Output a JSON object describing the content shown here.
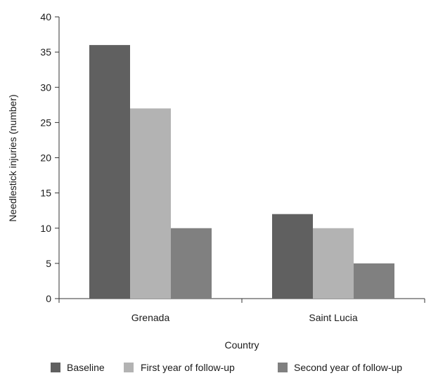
{
  "chart_data": {
    "type": "bar",
    "title": "",
    "xlabel": "Country",
    "ylabel": "Needlestick injuries (number)",
    "categories": [
      "Grenada",
      "Saint Lucia"
    ],
    "series": [
      {
        "name": "Baseline",
        "values": [
          36,
          12
        ],
        "color": "#606060"
      },
      {
        "name": "First year of follow-up",
        "values": [
          27,
          10
        ],
        "color": "#b3b3b3"
      },
      {
        "name": "Second year of follow-up",
        "values": [
          10,
          5
        ],
        "color": "#808080"
      }
    ],
    "ylim": [
      0,
      40
    ],
    "yticks": [
      "0",
      "5",
      "10",
      "15",
      "20",
      "25",
      "30",
      "35",
      "40"
    ],
    "grid": false,
    "legend_position": "bottom"
  }
}
